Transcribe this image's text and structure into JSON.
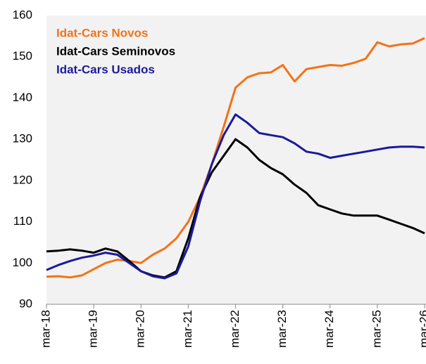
{
  "chart_data": {
    "type": "line",
    "categories": [
      "mar-18",
      null,
      null,
      null,
      "mar-19",
      null,
      null,
      null,
      "mar-20",
      null,
      null,
      null,
      "mar-21",
      null,
      null,
      null,
      "mar-22",
      null,
      null,
      null,
      "mar-23",
      null,
      null,
      null,
      "mar-24",
      null,
      null,
      null,
      "mar-25",
      null,
      null,
      null,
      "mar-26"
    ],
    "series": [
      {
        "name": "Idat-Cars Novos",
        "color": "#f47216",
        "values": [
          96.7,
          96.8,
          96.5,
          97.0,
          98.5,
          100,
          100.8,
          100.5,
          100,
          102,
          103.5,
          106,
          110,
          116,
          124,
          133,
          142.5,
          145,
          146,
          146.2,
          148,
          144,
          147,
          147.5,
          148,
          147.8,
          148.5,
          149.5,
          153.5,
          152.5,
          153,
          153.2,
          154.5
        ]
      },
      {
        "name": "Idat-Cars Seminovos",
        "color": "#000000",
        "values": [
          102.8,
          103.0,
          103.3,
          103.0,
          102.5,
          103.5,
          102.8,
          100.5,
          98,
          97,
          96.5,
          98,
          106,
          116,
          122,
          126,
          130,
          128,
          125,
          123,
          121.5,
          119,
          117,
          114,
          113,
          112,
          111.5,
          111.5,
          111.5,
          110.5,
          109.5,
          108.5,
          107.2
        ]
      },
      {
        "name": "Idat-Cars Usados",
        "color": "#1a1a9c",
        "values": [
          98.3,
          99.5,
          100.5,
          101.3,
          101.8,
          102.5,
          102,
          100,
          98,
          96.8,
          96.3,
          97.5,
          104,
          115,
          124,
          131,
          136,
          134,
          131.5,
          131,
          130.5,
          129,
          127,
          126.5,
          125.5,
          126,
          126.5,
          127,
          127.5,
          128,
          128.2,
          128.2,
          128
        ]
      }
    ],
    "ylim": [
      90,
      160
    ],
    "yticks": [
      90,
      100,
      110,
      120,
      130,
      140,
      150,
      160
    ],
    "grid": false
  }
}
